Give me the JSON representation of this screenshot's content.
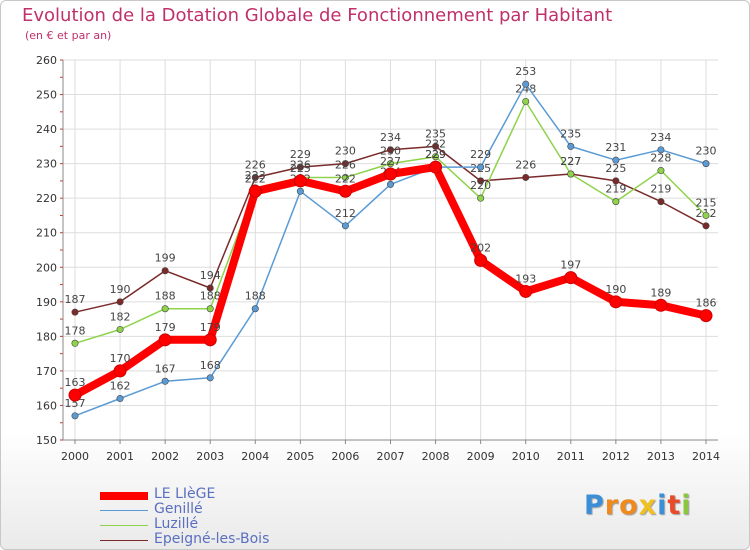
{
  "title": "Evolution de la Dotation Globale de Fonctionnement par Habitant",
  "subtitle": "(en € et par an)",
  "logo": {
    "text": "Proxiti",
    "letters": [
      "P",
      "r",
      "o",
      "x",
      "i",
      "t",
      "i"
    ],
    "colors": [
      "#3a8fd8",
      "#f08a1e",
      "#f08a1e",
      "#f0c020",
      "#3a8fd8",
      "#e84a2a",
      "#8cc63f"
    ]
  },
  "chart_data": {
    "type": "line",
    "title": "Evolution de la Dotation Globale de Fonctionnement par Habitant",
    "xlabel": "",
    "ylabel": "",
    "x": [
      "2000",
      "2001",
      "2002",
      "2003",
      "2004",
      "2005",
      "2006",
      "2007",
      "2008",
      "2009",
      "2010",
      "2011",
      "2012",
      "2013",
      "2014"
    ],
    "ylim": [
      150,
      260
    ],
    "yticks": [
      "150",
      "160",
      "170",
      "180",
      "190",
      "200",
      "210",
      "220",
      "230",
      "240",
      "250",
      "260"
    ],
    "grid": true,
    "legend_position": "bottom-left",
    "series": [
      {
        "name": "Epeigné-les-Bois",
        "color": "#7a2a2a",
        "values": [
          187,
          190,
          199,
          194,
          226,
          229,
          230,
          234,
          235,
          225,
          226,
          227,
          225,
          219,
          212
        ],
        "labels": [
          "187",
          "190",
          "199",
          "194",
          "226",
          "229",
          "230",
          "234",
          "235",
          "225",
          "226",
          "227",
          "225",
          "219",
          "212"
        ]
      },
      {
        "name": "Luzillé",
        "color": "#8ed34a",
        "values": [
          178,
          182,
          188,
          188,
          223,
          226,
          226,
          230,
          232,
          220,
          248,
          227,
          219,
          228,
          215
        ],
        "labels": [
          "178",
          "182",
          "188",
          "188",
          "223",
          "226",
          "226",
          "230",
          "232",
          "220",
          "248",
          "227",
          "219",
          "228",
          "215"
        ]
      },
      {
        "name": "Genillé",
        "color": "#5b9bd5",
        "values": [
          157,
          162,
          167,
          168,
          188,
          222,
          212,
          224,
          229,
          229,
          253,
          235,
          231,
          234,
          230
        ],
        "labels": [
          "157",
          "162",
          "167",
          "168",
          "188",
          "222",
          "212",
          "224",
          "229",
          "229",
          "253",
          "235",
          "231",
          "234",
          "230"
        ]
      },
      {
        "name": "LE LIèGE",
        "color": "#ff0000",
        "values": [
          163,
          170,
          179,
          179,
          222,
          225,
          222,
          227,
          229,
          202,
          193,
          197,
          190,
          189,
          186
        ],
        "labels": [
          "163",
          "170",
          "179",
          "179",
          "222",
          "225",
          "222",
          "227",
          "229",
          "202",
          "193",
          "197",
          "190",
          "189",
          "186"
        ]
      }
    ]
  },
  "legend": [
    {
      "name": "LE LIèGE",
      "color": "#ff0000",
      "thick": true
    },
    {
      "name": "Genillé",
      "color": "#5b9bd5",
      "thick": false
    },
    {
      "name": "Luzillé",
      "color": "#8ed34a",
      "thick": false
    },
    {
      "name": "Epeigné-les-Bois",
      "color": "#7a2a2a",
      "thick": false
    }
  ]
}
